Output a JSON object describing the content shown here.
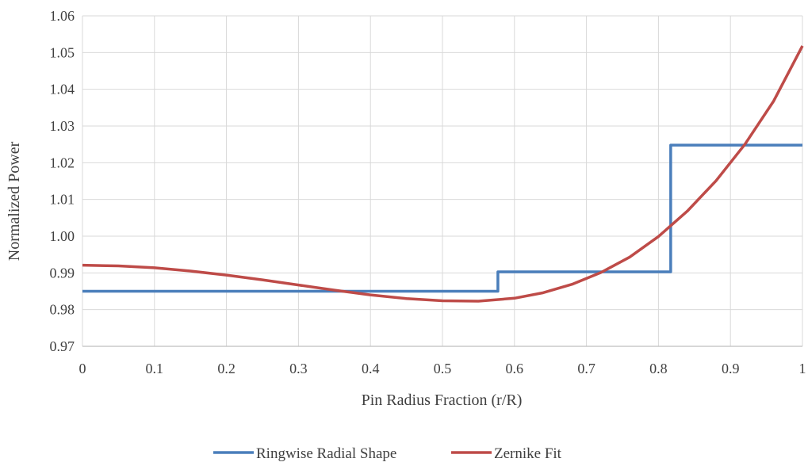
{
  "chart_data": {
    "type": "line",
    "title": "",
    "xlabel": "Pin Radius Fraction (r/R)",
    "ylabel": "Normalized Power",
    "xlim": [
      0,
      1
    ],
    "ylim": [
      0.97,
      1.06
    ],
    "x_ticks": [
      "0",
      "0.1",
      "0.2",
      "0.3",
      "0.4",
      "0.5",
      "0.6",
      "0.7",
      "0.8",
      "0.9",
      "1"
    ],
    "y_ticks": [
      "0.97",
      "0.98",
      "0.99",
      "1.00",
      "1.01",
      "1.02",
      "1.03",
      "1.04",
      "1.05",
      "1.06"
    ],
    "grid": true,
    "legend_position": "bottom",
    "series": [
      {
        "name": "Ringwise Radial Shape",
        "color": "#4a7ebb",
        "style": "step",
        "x": [
          0,
          0.577,
          0.577,
          0.817,
          0.817,
          1.0
        ],
        "y": [
          0.985,
          0.985,
          0.9903,
          0.9903,
          1.0248,
          1.0248
        ]
      },
      {
        "name": "Zernike Fit",
        "color": "#be4b48",
        "style": "line",
        "x": [
          0,
          0.05,
          0.1,
          0.15,
          0.2,
          0.25,
          0.3,
          0.35,
          0.4,
          0.45,
          0.5,
          0.55,
          0.6,
          0.64,
          0.68,
          0.72,
          0.76,
          0.8,
          0.84,
          0.88,
          0.92,
          0.96,
          1.0
        ],
        "y": [
          0.9921,
          0.9919,
          0.9914,
          0.9905,
          0.9894,
          0.9881,
          0.9867,
          0.9853,
          0.984,
          0.983,
          0.9824,
          0.9823,
          0.9831,
          0.9846,
          0.9869,
          0.9901,
          0.9943,
          0.9999,
          1.0068,
          1.0151,
          1.025,
          1.0368,
          1.0518
        ]
      }
    ]
  }
}
